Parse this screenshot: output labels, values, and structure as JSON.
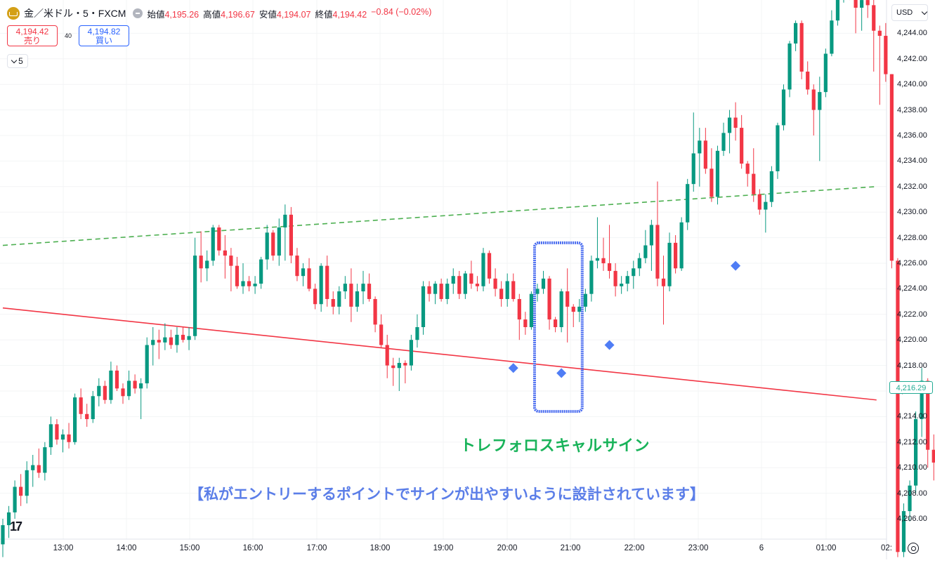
{
  "header": {
    "symbol": "金／米ドル・5・FXCM",
    "ohlc": [
      {
        "label": "始値",
        "value": "4,195.26"
      },
      {
        "label": "高値",
        "value": "4,196.67"
      },
      {
        "label": "安値",
        "value": "4,194.07"
      },
      {
        "label": "終値",
        "value": "4,194.42"
      }
    ],
    "change": "−0.84 (−0.02%)"
  },
  "trade": {
    "sell_price": "4,194.42",
    "sell_label": "売り",
    "spread": "40",
    "buy_price": "4,194.82",
    "buy_label": "買い"
  },
  "collapse": {
    "count": "5"
  },
  "currency": "USD",
  "price_tag": "4,216.29",
  "annotations": {
    "sign_label": "トレフォロスキャルサイン",
    "note": "【私がエントリーするポイントでサインが出やすいように設計されています】"
  },
  "colors": {
    "up": "#089981",
    "down": "#f23645",
    "signal": "#4f7df5",
    "support_line": "#f23645",
    "trend_line": "#4caf50",
    "highlight": "#4a6cf0"
  },
  "chart_data": {
    "type": "candlestick",
    "price_axis": {
      "min": 4204,
      "max": 4246,
      "ticks": [
        4206,
        4208,
        4210,
        4212,
        4214,
        4216,
        4218,
        4220,
        4222,
        4224,
        4226,
        4228,
        4230,
        4232,
        4234,
        4236,
        4238,
        4240,
        4242,
        4244
      ]
    },
    "time_axis": [
      "13:00",
      "14:00",
      "15:00",
      "16:00",
      "17:00",
      "18:00",
      "19:00",
      "20:00",
      "21:00",
      "22:00",
      "23:00",
      "6",
      "01:00",
      "02:"
    ],
    "candles": [
      [
        4204.0,
        4206.0,
        4203.0,
        4205.5
      ],
      [
        4205.5,
        4207.0,
        4204.5,
        4206.5
      ],
      [
        4206.5,
        4209.0,
        4206.0,
        4208.5
      ],
      [
        4208.5,
        4209.5,
        4207.0,
        4207.8
      ],
      [
        4207.8,
        4210.5,
        4207.2,
        4209.8
      ],
      [
        4209.8,
        4211.0,
        4208.5,
        4210.2
      ],
      [
        4210.2,
        4211.5,
        4209.2,
        4209.6
      ],
      [
        4209.6,
        4212.0,
        4209.0,
        4211.6
      ],
      [
        4211.6,
        4214.0,
        4211.0,
        4213.4
      ],
      [
        4213.4,
        4213.8,
        4211.8,
        4212.2
      ],
      [
        4212.2,
        4213.0,
        4211.2,
        4212.6
      ],
      [
        4212.6,
        4213.5,
        4211.5,
        4212.0
      ],
      [
        4212.0,
        4215.8,
        4211.8,
        4215.5
      ],
      [
        4215.5,
        4216.2,
        4213.8,
        4214.2
      ],
      [
        4214.2,
        4215.0,
        4213.2,
        4213.8
      ],
      [
        4213.8,
        4216.0,
        4213.5,
        4215.6
      ],
      [
        4215.6,
        4217.0,
        4214.8,
        4216.4
      ],
      [
        4216.4,
        4216.8,
        4215.0,
        4215.3
      ],
      [
        4215.3,
        4218.3,
        4215.0,
        4217.6
      ],
      [
        4217.6,
        4218.0,
        4216.0,
        4216.2
      ],
      [
        4216.2,
        4216.6,
        4215.0,
        4215.6
      ],
      [
        4215.6,
        4217.6,
        4215.3,
        4216.8
      ],
      [
        4216.8,
        4217.3,
        4215.8,
        4216.2
      ],
      [
        4216.2,
        4217.0,
        4213.8,
        4216.6
      ],
      [
        4216.6,
        4220.2,
        4216.2,
        4219.6
      ],
      [
        4219.6,
        4221.0,
        4218.0,
        4220.0
      ],
      [
        4220.0,
        4220.8,
        4218.5,
        4219.8
      ],
      [
        4219.8,
        4221.3,
        4219.2,
        4220.2
      ],
      [
        4220.2,
        4220.8,
        4219.3,
        4219.6
      ],
      [
        4219.6,
        4221.0,
        4219.0,
        4220.4
      ],
      [
        4220.4,
        4221.0,
        4219.8,
        4220.0
      ],
      [
        4220.0,
        4221.0,
        4219.2,
        4220.3
      ],
      [
        4220.3,
        4228.0,
        4220.0,
        4226.6
      ],
      [
        4226.6,
        4228.5,
        4224.5,
        4225.6
      ],
      [
        4225.6,
        4227.0,
        4224.6,
        4226.2
      ],
      [
        4226.2,
        4229.0,
        4225.8,
        4228.8
      ],
      [
        4228.8,
        4229.0,
        4226.6,
        4227.0
      ],
      [
        4227.0,
        4228.2,
        4224.8,
        4226.6
      ],
      [
        4226.6,
        4227.2,
        4223.8,
        4225.8
      ],
      [
        4225.8,
        4226.5,
        4224.0,
        4224.2
      ],
      [
        4224.2,
        4226.0,
        4223.6,
        4224.6
      ],
      [
        4224.6,
        4225.0,
        4223.8,
        4224.2
      ],
      [
        4224.2,
        4225.0,
        4223.6,
        4224.4
      ],
      [
        4224.4,
        4226.5,
        4224.0,
        4226.3
      ],
      [
        4226.3,
        4229.0,
        4225.5,
        4228.4
      ],
      [
        4228.4,
        4228.6,
        4226.2,
        4226.6
      ],
      [
        4226.6,
        4229.5,
        4225.8,
        4228.8
      ],
      [
        4228.8,
        4230.6,
        4226.2,
        4229.8
      ],
      [
        4229.8,
        4230.4,
        4226.0,
        4226.6
      ],
      [
        4226.6,
        4227.2,
        4224.6,
        4225.0
      ],
      [
        4225.0,
        4226.0,
        4224.2,
        4225.6
      ],
      [
        4225.6,
        4226.4,
        4223.8,
        4224.0
      ],
      [
        4224.0,
        4224.4,
        4222.4,
        4222.8
      ],
      [
        4222.8,
        4226.0,
        4222.2,
        4225.8
      ],
      [
        4225.8,
        4226.6,
        4222.6,
        4223.2
      ],
      [
        4223.2,
        4223.8,
        4222.0,
        4222.6
      ],
      [
        4222.6,
        4224.2,
        4222.0,
        4223.8
      ],
      [
        4223.8,
        4225.0,
        4223.2,
        4224.4
      ],
      [
        4224.4,
        4225.6,
        4221.4,
        4222.6
      ],
      [
        4222.6,
        4224.4,
        4222.2,
        4223.8
      ],
      [
        4223.8,
        4225.4,
        4222.8,
        4224.4
      ],
      [
        4224.4,
        4225.2,
        4223.0,
        4223.2
      ],
      [
        4223.2,
        4223.4,
        4220.6,
        4221.2
      ],
      [
        4221.2,
        4222.0,
        4219.4,
        4219.6
      ],
      [
        4219.6,
        4220.4,
        4217.0,
        4218.0
      ],
      [
        4218.0,
        4218.6,
        4216.4,
        4217.8
      ],
      [
        4217.8,
        4218.6,
        4216.0,
        4218.2
      ],
      [
        4218.2,
        4218.4,
        4216.6,
        4218.0
      ],
      [
        4218.0,
        4220.4,
        4217.6,
        4220.0
      ],
      [
        4220.0,
        4222.0,
        4219.4,
        4221.0
      ],
      [
        4221.0,
        4224.6,
        4220.4,
        4224.2
      ],
      [
        4224.2,
        4224.6,
        4223.0,
        4223.6
      ],
      [
        4223.6,
        4224.6,
        4222.8,
        4224.4
      ],
      [
        4224.4,
        4224.8,
        4223.0,
        4223.2
      ],
      [
        4223.2,
        4224.8,
        4222.8,
        4224.4
      ],
      [
        4224.4,
        4225.6,
        4223.6,
        4225.0
      ],
      [
        4225.0,
        4225.4,
        4223.2,
        4223.6
      ],
      [
        4223.6,
        4225.4,
        4223.2,
        4225.2
      ],
      [
        4225.2,
        4226.2,
        4224.0,
        4224.4
      ],
      [
        4224.4,
        4225.0,
        4223.8,
        4224.2
      ],
      [
        4224.2,
        4227.2,
        4223.8,
        4226.8
      ],
      [
        4226.8,
        4227.0,
        4224.4,
        4224.8
      ],
      [
        4224.8,
        4225.6,
        4223.4,
        4224.0
      ],
      [
        4224.0,
        4224.6,
        4222.6,
        4223.2
      ],
      [
        4223.2,
        4225.2,
        4222.6,
        4224.6
      ],
      [
        4224.6,
        4225.2,
        4223.0,
        4223.2
      ],
      [
        4223.2,
        4223.6,
        4220.0,
        4221.6
      ],
      [
        4221.6,
        4222.2,
        4220.4,
        4221.0
      ],
      [
        4221.0,
        4223.8,
        4220.8,
        4223.6
      ],
      [
        4223.6,
        4224.4,
        4223.0,
        4224.0
      ],
      [
        4224.0,
        4225.4,
        4223.6,
        4224.8
      ],
      [
        4224.8,
        4225.0,
        4220.8,
        4221.6
      ],
      [
        4221.6,
        4221.8,
        4220.6,
        4221.0
      ],
      [
        4221.0,
        4224.0,
        4220.6,
        4223.8
      ],
      [
        4223.8,
        4225.6,
        4219.8,
        4222.6
      ],
      [
        4222.6,
        4222.8,
        4221.0,
        4222.2
      ],
      [
        4222.2,
        4223.2,
        4221.4,
        4222.6
      ],
      [
        4222.6,
        4224.0,
        4222.2,
        4223.6
      ],
      [
        4223.6,
        4226.6,
        4223.0,
        4226.2
      ],
      [
        4226.2,
        4229.6,
        4225.6,
        4226.4
      ],
      [
        4226.4,
        4228.0,
        4225.4,
        4226.0
      ],
      [
        4226.0,
        4229.0,
        4224.8,
        4225.4
      ],
      [
        4225.4,
        4226.0,
        4223.4,
        4224.2
      ],
      [
        4224.2,
        4225.0,
        4223.6,
        4224.4
      ],
      [
        4224.4,
        4225.4,
        4223.8,
        4225.0
      ],
      [
        4225.0,
        4226.2,
        4224.0,
        4225.6
      ],
      [
        4225.6,
        4226.8,
        4225.0,
        4226.4
      ],
      [
        4226.4,
        4228.6,
        4226.0,
        4227.4
      ],
      [
        4227.4,
        4229.4,
        4225.4,
        4229.0
      ],
      [
        4229.0,
        4232.4,
        4224.2,
        4224.8
      ],
      [
        4224.8,
        4226.6,
        4221.2,
        4224.2
      ],
      [
        4224.2,
        4228.4,
        4223.8,
        4227.6
      ],
      [
        4227.6,
        4228.2,
        4225.2,
        4225.6
      ],
      [
        4225.6,
        4229.6,
        4225.4,
        4229.2
      ],
      [
        4229.2,
        4232.6,
        4228.6,
        4232.2
      ],
      [
        4232.2,
        4237.8,
        4231.6,
        4234.6
      ],
      [
        4234.6,
        4236.6,
        4232.0,
        4235.6
      ],
      [
        4235.6,
        4236.6,
        4233.0,
        4233.4
      ],
      [
        4233.4,
        4235.0,
        4230.8,
        4231.2
      ],
      [
        4231.2,
        4235.2,
        4230.6,
        4234.8
      ],
      [
        4234.8,
        4237.0,
        4234.4,
        4236.2
      ],
      [
        4236.2,
        4238.0,
        4234.6,
        4237.4
      ],
      [
        4237.4,
        4238.6,
        4235.6,
        4236.6
      ],
      [
        4236.6,
        4237.6,
        4233.4,
        4233.8
      ],
      [
        4233.8,
        4234.0,
        4232.0,
        4233.0
      ],
      [
        4233.0,
        4235.0,
        4230.8,
        4231.4
      ],
      [
        4231.4,
        4231.8,
        4229.8,
        4230.2
      ],
      [
        4230.2,
        4231.4,
        4228.4,
        4230.8
      ],
      [
        4230.8,
        4233.6,
        4230.4,
        4233.2
      ],
      [
        4233.2,
        4237.0,
        4232.6,
        4236.8
      ],
      [
        4236.8,
        4240.0,
        4236.4,
        4239.6
      ],
      [
        4239.6,
        4243.4,
        4239.0,
        4243.2
      ],
      [
        4243.2,
        4245.0,
        4242.6,
        4244.8
      ],
      [
        4244.8,
        4245.0,
        4240.4,
        4241.0
      ],
      [
        4241.0,
        4241.8,
        4239.2,
        4239.6
      ],
      [
        4239.6,
        4240.0,
        4236.0,
        4238.0
      ],
      [
        4238.0,
        4240.6,
        4234.0,
        4239.4
      ],
      [
        4239.4,
        4242.8,
        4239.0,
        4242.4
      ],
      [
        4242.4,
        4245.8,
        4242.2,
        4245.0
      ],
      [
        4245.0,
        4248.0,
        4244.6,
        4246.8
      ],
      [
        4246.8,
        4250.0,
        4246.4,
        4248.6
      ],
      [
        4248.6,
        4248.8,
        4246.6,
        4247.2
      ],
      [
        4247.2,
        4247.6,
        4244.0,
        4246.0
      ],
      [
        4246.0,
        4247.2,
        4244.2,
        4246.6
      ],
      [
        4246.6,
        4247.0,
        4245.2,
        4246.2
      ],
      [
        4246.2,
        4247.0,
        4241.0,
        4244.2
      ],
      [
        4244.2,
        4244.6,
        4238.4,
        4243.8
      ],
      [
        4243.8,
        4244.8,
        4240.2,
        4240.8
      ],
      [
        4240.8,
        4240.8,
        4225.6,
        4226.2
      ],
      [
        4226.2,
        4226.4,
        4203.0,
        4203.4
      ],
      [
        4203.4,
        4207.2,
        4203.0,
        4206.6
      ],
      [
        4206.6,
        4209.0,
        4205.8,
        4208.6
      ],
      [
        4208.6,
        4214.4,
        4208.0,
        4213.8
      ],
      [
        4213.8,
        4217.8,
        4212.4,
        4216.8
      ],
      [
        4216.8,
        4217.0,
        4210.0,
        4211.4
      ],
      [
        4211.4,
        4212.6,
        4209.0,
        4210.4
      ],
      [
        4210.4,
        4212.2,
        4208.0,
        4211.8
      ],
      [
        4211.8,
        4216.8,
        4211.4,
        4216.4
      ],
      [
        4216.4,
        4217.2,
        4214.0,
        4214.6
      ],
      [
        4214.6,
        4216.6,
        4214.2,
        4216.3
      ]
    ],
    "signals": [
      {
        "candle": 85,
        "price": 4217.8
      },
      {
        "candle": 93,
        "price": 4217.4
      },
      {
        "candle": 101,
        "price": 4219.6
      },
      {
        "candle": 122,
        "price": 4225.8
      }
    ],
    "lines": [
      {
        "name": "support",
        "style": "solid",
        "from": {
          "candle": 0,
          "price": 4222.5
        },
        "to": {
          "candle": 145,
          "price": 4215.3
        }
      },
      {
        "name": "trend",
        "style": "dashed",
        "from": {
          "candle": 0,
          "price": 4227.4
        },
        "to": {
          "candle": 145,
          "price": 4232.0
        }
      }
    ],
    "highlight": {
      "from_candle": 89,
      "to_candle": 96,
      "price_top": 4227.6,
      "price_bottom": 4214.4
    }
  }
}
